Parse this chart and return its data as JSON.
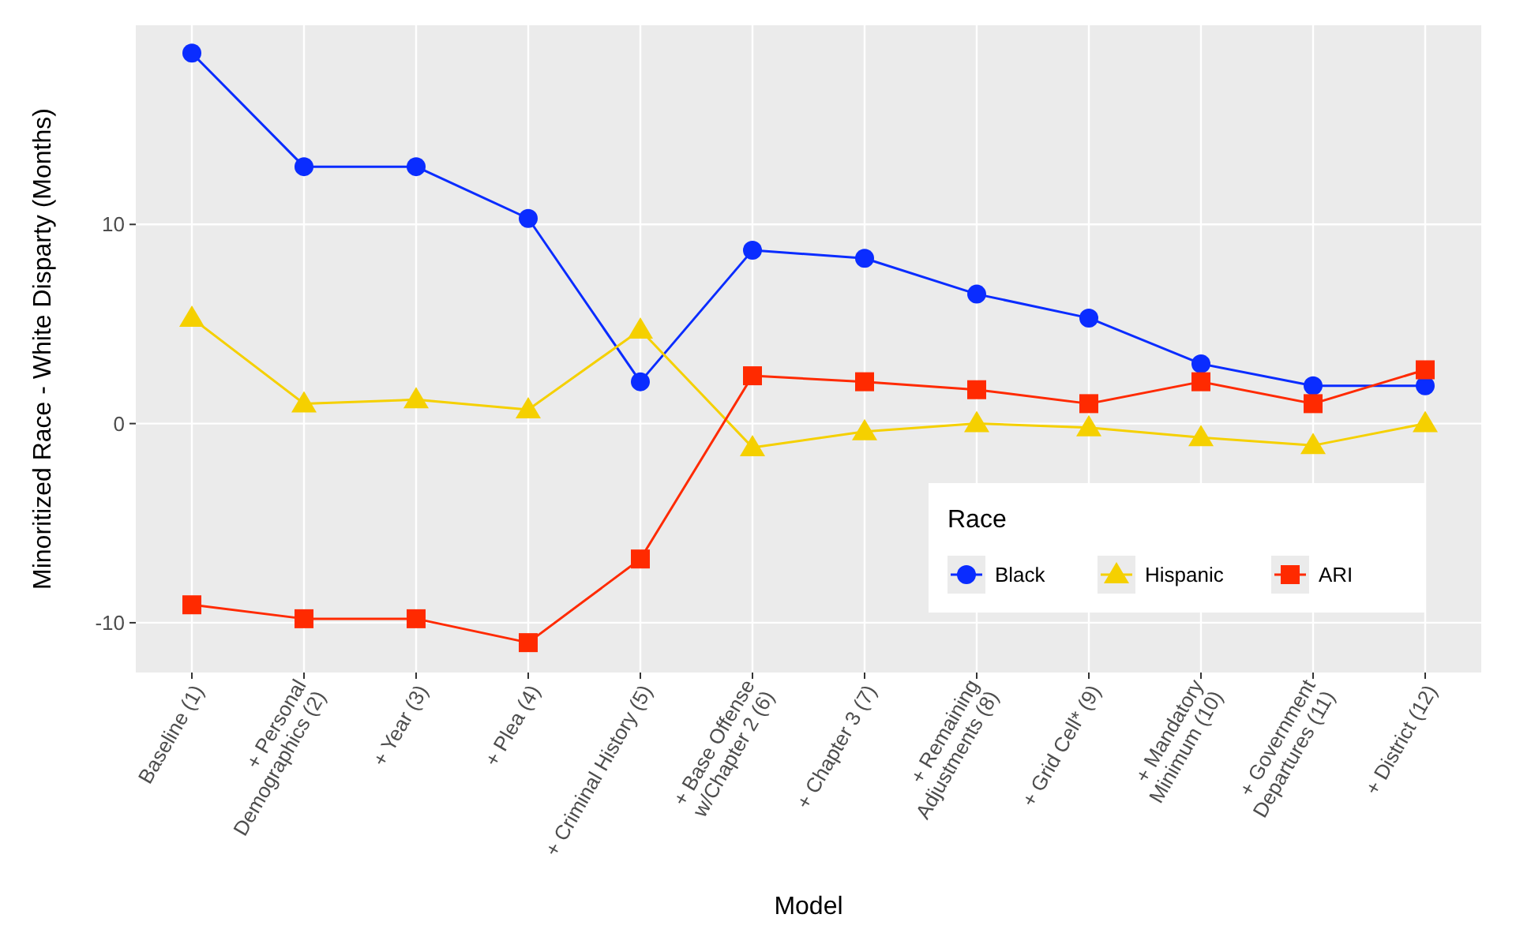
{
  "chart_data": {
    "type": "line",
    "xlabel": "Model",
    "ylabel": "Minoritized Race - White Disparty (Months)",
    "legend_title": "Race",
    "legend": "bottom right",
    "grid": true,
    "categories": [
      "Baseline (1)",
      "+ Personal\nDemographics (2)",
      "+ Year (3)",
      "+ Plea (4)",
      "+ Criminal History (5)",
      "+ Base Offense\nw/Chapter 2 (6)",
      "+ Chapter 3 (7)",
      "+ Remaining\nAdjustments (8)",
      "+ Grid Cell* (9)",
      "+ Mandatory\nMinimum (10)",
      "+ Government\nDepartures (11)",
      "+ District (12)"
    ],
    "ylim": [
      -12.5,
      20
    ],
    "yticks": [
      -10,
      0,
      10
    ],
    "series": [
      {
        "name": "Black",
        "color": "#0a2cff",
        "marker": "circle",
        "values": [
          18.6,
          12.9,
          12.9,
          10.3,
          2.1,
          8.7,
          8.3,
          6.5,
          5.3,
          3.0,
          1.9,
          1.9
        ]
      },
      {
        "name": "Hispanic",
        "color": "#f5d000",
        "marker": "triangle",
        "values": [
          5.3,
          1.0,
          1.2,
          0.7,
          4.7,
          -1.2,
          -0.4,
          0,
          -0.2,
          -0.7,
          -1.1,
          0
        ]
      },
      {
        "name": "ARI",
        "color": "#ff2a00",
        "marker": "square",
        "values": [
          -9.1,
          -9.8,
          -9.8,
          -11.0,
          -6.8,
          2.4,
          2.1,
          1.7,
          1.0,
          2.1,
          1.0,
          2.7
        ]
      }
    ]
  }
}
